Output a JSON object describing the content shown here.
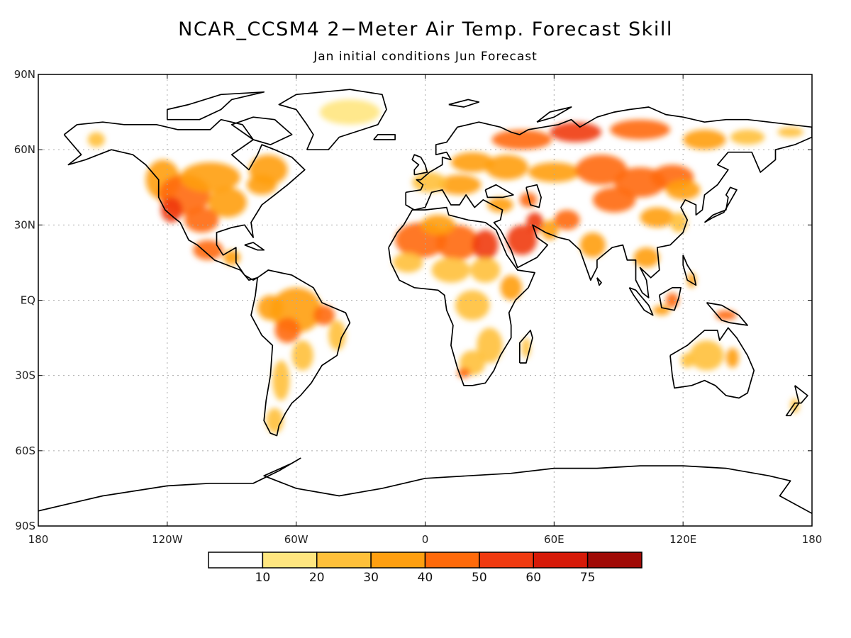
{
  "map": {
    "title": "NCAR_CCSM4 2−Meter Air Temp. Forecast Skill",
    "subtitle": "Jan initial conditions   Jun Forecast",
    "projection": "equirectangular",
    "lon_range": [
      -180,
      180
    ],
    "lat_range": [
      -90,
      90
    ],
    "grid": true,
    "lat_ticks": [
      {
        "value": 90,
        "label": "90N"
      },
      {
        "value": 60,
        "label": "60N"
      },
      {
        "value": 30,
        "label": "30N"
      },
      {
        "value": 0,
        "label": "EQ"
      },
      {
        "value": -30,
        "label": "30S"
      },
      {
        "value": -60,
        "label": "60S"
      },
      {
        "value": -90,
        "label": "90S"
      }
    ],
    "lon_ticks": [
      {
        "value": -180,
        "label": "180"
      },
      {
        "value": -120,
        "label": "120W"
      },
      {
        "value": -60,
        "label": "60W"
      },
      {
        "value": 0,
        "label": "0"
      },
      {
        "value": 60,
        "label": "60E"
      },
      {
        "value": 120,
        "label": "120E"
      },
      {
        "value": 180,
        "label": "180"
      }
    ]
  },
  "colorbar": {
    "levels": [
      "10",
      "20",
      "30",
      "40",
      "50",
      "60",
      "75"
    ],
    "colors": [
      "#ffffff",
      "#ffe680",
      "#ffc03a",
      "#ff9f10",
      "#ff6a0a",
      "#f03a10",
      "#d61a08",
      "#a00a06"
    ]
  },
  "colors": {
    "land_outline": "#000000",
    "grid": "#aaaaaa",
    "skill_palette": [
      "#ffe680",
      "#ffc03a",
      "#ff9f10",
      "#ff6a0a",
      "#f03a10",
      "#d61a08"
    ]
  }
}
